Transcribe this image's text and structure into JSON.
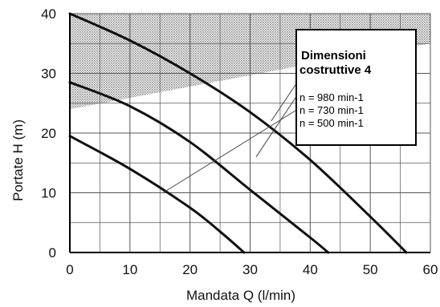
{
  "chart_data": {
    "type": "line",
    "xlabel": "Mandata Q (l/min)",
    "ylabel": "Portate H (m)",
    "xlim": [
      0,
      60
    ],
    "ylim": [
      0,
      40
    ],
    "xticks": [
      "0",
      "10",
      "20",
      "30",
      "40",
      "50",
      "60"
    ],
    "yticks": [
      "0",
      "10",
      "20",
      "30",
      "40"
    ],
    "grid": true,
    "x_minor_step": 5,
    "y_minor_step": 5,
    "legend_position": "top-right",
    "legend_title": "Dimensioni\ncostruttive 4",
    "shaded_region": {
      "description_color": "#bdbdbd",
      "boundary": [
        [
          0,
          24
        ],
        [
          37,
          31
        ],
        [
          60,
          35
        ]
      ]
    },
    "series": [
      {
        "name": "n = 980 min-1",
        "x": [
          0,
          10,
          20,
          30,
          40,
          50,
          56
        ],
        "y": [
          40,
          35.5,
          30,
          23.5,
          15.5,
          6,
          0
        ]
      },
      {
        "name": "n = 730 min-1",
        "x": [
          0,
          10,
          20,
          30,
          40,
          43
        ],
        "y": [
          28.5,
          24.5,
          18.5,
          10.5,
          2.5,
          0
        ]
      },
      {
        "name": "n = 500 min-1",
        "x": [
          0,
          10,
          20,
          25,
          29
        ],
        "y": [
          19.5,
          14,
          7.5,
          3.5,
          0
        ]
      }
    ],
    "pointer_targets": [
      [
        33.5,
        22
      ],
      [
        31,
        16
      ],
      [
        15.5,
        10
      ]
    ]
  }
}
